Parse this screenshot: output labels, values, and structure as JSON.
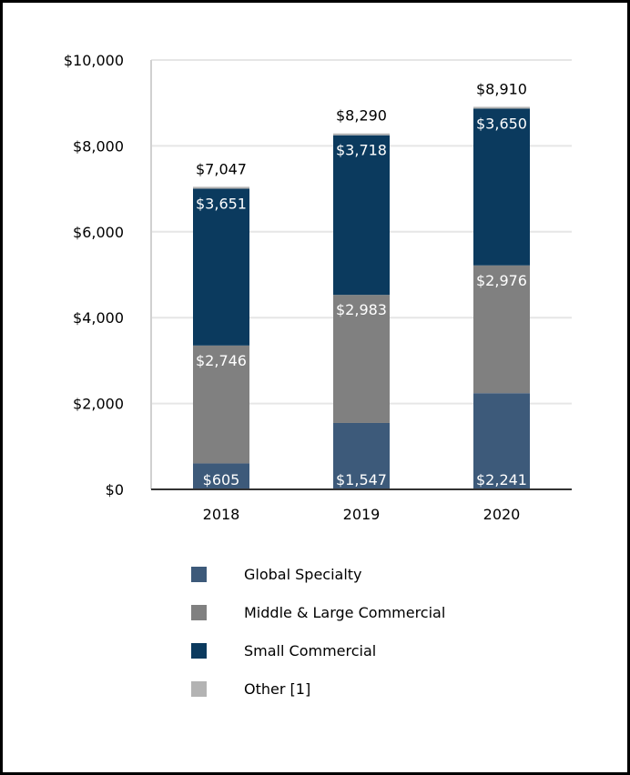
{
  "chart_data": {
    "type": "bar",
    "stacked": true,
    "categories": [
      "2018",
      "2019",
      "2020"
    ],
    "series": [
      {
        "name": "Global Specialty",
        "color": "#3d5a7a",
        "values": [
          605,
          1547,
          2241
        ],
        "labels": [
          "$605",
          "$1,547",
          "$2,241"
        ]
      },
      {
        "name": "Middle & Large Commercial",
        "color": "#808080",
        "values": [
          2746,
          2983,
          2976
        ],
        "labels": [
          "$2,746",
          "$2,983",
          "$2,976"
        ]
      },
      {
        "name": "Small Commercial",
        "color": "#0b3a5e",
        "values": [
          3651,
          3718,
          3650
        ],
        "labels": [
          "$3,651",
          "$3,718",
          "$3,650"
        ]
      },
      {
        "name": "Other [1]",
        "color": "#b3b3b3",
        "values": [
          45,
          42,
          43
        ]
      }
    ],
    "totals": [
      "$7,047",
      "$8,290",
      "$8,910"
    ],
    "total_values": [
      7047,
      8290,
      8910
    ],
    "ylim": [
      0,
      10000
    ],
    "yticks": [
      0,
      2000,
      4000,
      6000,
      8000,
      10000
    ],
    "ytick_labels": [
      "$0",
      "$2,000",
      "$4,000",
      "$6,000",
      "$8,000",
      "$10,000"
    ],
    "grid": true,
    "legend_position": "bottom"
  }
}
